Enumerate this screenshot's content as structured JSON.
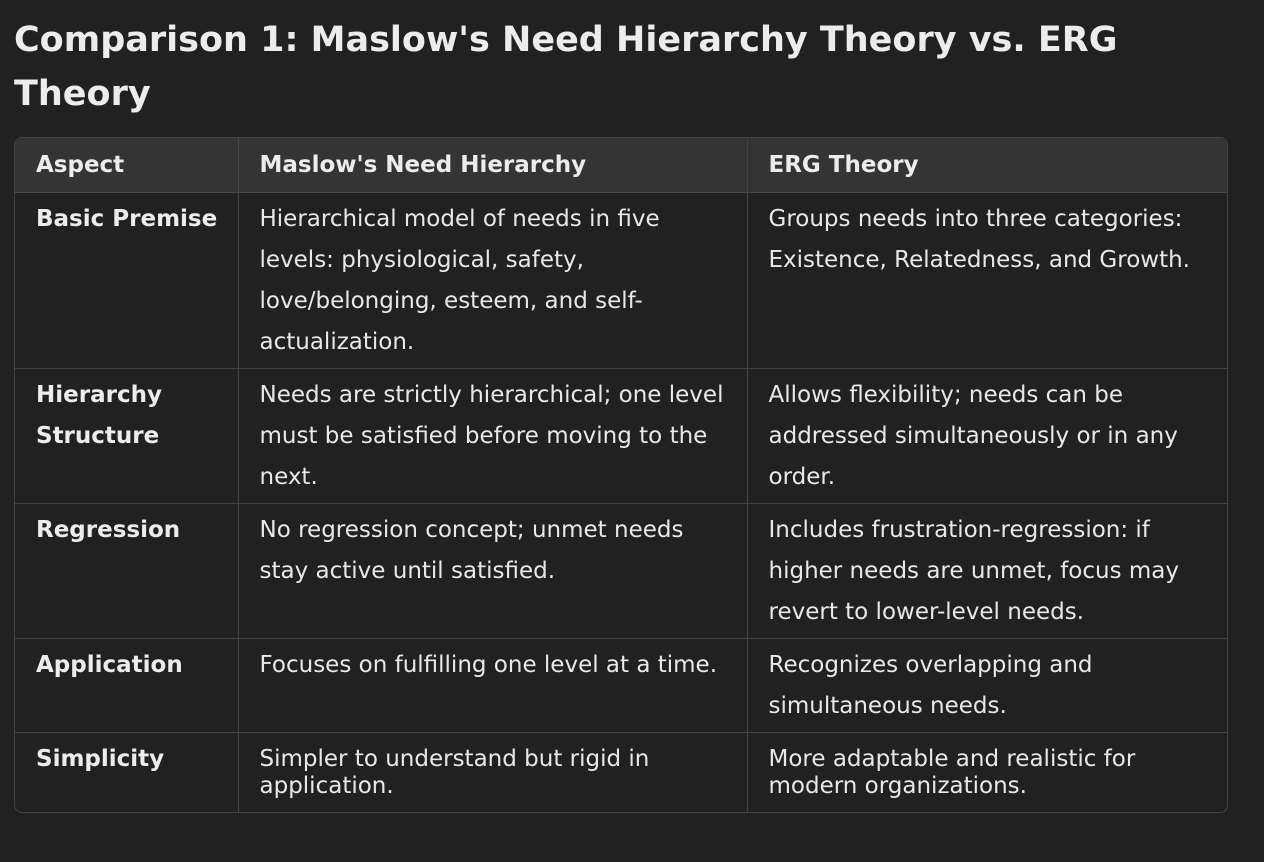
{
  "title": "Comparison 1: Maslow's Need Hierarchy Theory vs. ERG Theory",
  "table": {
    "headers": [
      "Aspect",
      "Maslow's Need Hierarchy",
      "ERG Theory"
    ],
    "rows": [
      {
        "aspect": "Basic Premise",
        "maslow": "Hierarchical model of needs in five levels: physiological, safety, love/belonging, esteem, and self-actualization.",
        "erg": "Groups needs into three categories: Existence, Relatedness, and Growth."
      },
      {
        "aspect": "Hierarchy Structure",
        "maslow": "Needs are strictly hierarchical; one level must be satisfied before moving to the next.",
        "erg": "Allows flexibility; needs can be addressed simultaneously or in any order."
      },
      {
        "aspect": "Regression",
        "maslow": "No regression concept; unmet needs stay active until satisfied.",
        "erg": "Includes frustration-regression: if higher needs are unmet, focus may revert to lower-level needs."
      },
      {
        "aspect": "Application",
        "maslow": "Focuses on fulfilling one level at a time.",
        "erg": "Recognizes overlapping and simultaneous needs."
      },
      {
        "aspect": "Simplicity",
        "maslow": "Simpler to understand but rigid in application.",
        "erg": "More adaptable and realistic for modern organizations."
      }
    ]
  }
}
